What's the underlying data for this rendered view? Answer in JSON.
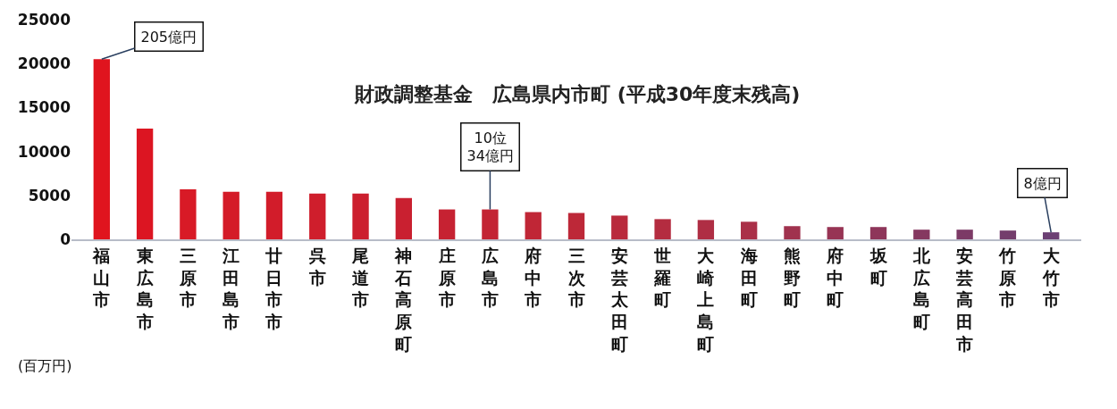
{
  "chart_data": {
    "type": "bar",
    "title": "財政調整基金　広島県内市町 (平成30年度末残高)",
    "ylabel": "(百万円)",
    "categories": [
      "福山市",
      "東広島市",
      "三原市",
      "江田島市",
      "廿日市市",
      "呉市",
      "尾道市",
      "神石高原町",
      "庄原市",
      "広島市",
      "府中市",
      "三次市",
      "安芸太田町",
      "世羅町",
      "大崎上島町",
      "海田町",
      "熊野町",
      "府中町",
      "坂町",
      "北広島町",
      "安芸高田市",
      "竹原市",
      "大竹市"
    ],
    "values": [
      20500,
      12600,
      5700,
      5400,
      5400,
      5200,
      5200,
      4700,
      3400,
      3400,
      3100,
      3000,
      2700,
      2300,
      2200,
      2000,
      1500,
      1400,
      1400,
      1100,
      1100,
      1000,
      800
    ],
    "colors": [
      "#e0141e",
      "#dc1522",
      "#d81a26",
      "#d41b28",
      "#d21c2a",
      "#cf1e2c",
      "#cc1f2e",
      "#c92030",
      "#c62232",
      "#c32434",
      "#c02636",
      "#bd2838",
      "#b92a3c",
      "#b42c40",
      "#af2e44",
      "#aa3048",
      "#a0324e",
      "#973454",
      "#8e365a",
      "#853860",
      "#7c3a66",
      "#743d6c",
      "#6c4074"
    ],
    "ylim": [
      0,
      25000
    ],
    "yticks": [
      0,
      5000,
      10000,
      15000,
      20000,
      25000
    ],
    "annotations": [
      {
        "text": "205億円",
        "x": "福山市",
        "y": 20500
      },
      {
        "text": "10位\n34億円",
        "x": "広島市",
        "y": 3400
      },
      {
        "text": "8億円",
        "x": "大竹市",
        "y": 800
      }
    ]
  }
}
